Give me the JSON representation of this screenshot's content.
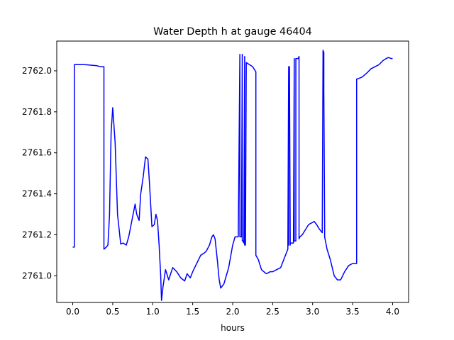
{
  "chart_data": {
    "type": "line",
    "title": "Water Depth h at gauge 46404",
    "xlabel": "hours",
    "ylabel": "",
    "xlim": [
      -0.2,
      4.2
    ],
    "ylim": [
      2760.87,
      2762.145
    ],
    "xticks": [
      {
        "value": 0.0,
        "label": "0.0"
      },
      {
        "value": 0.5,
        "label": "0.5"
      },
      {
        "value": 1.0,
        "label": "1.0"
      },
      {
        "value": 1.5,
        "label": "1.5"
      },
      {
        "value": 2.0,
        "label": "2.0"
      },
      {
        "value": 2.5,
        "label": "2.5"
      },
      {
        "value": 3.0,
        "label": "3.0"
      },
      {
        "value": 3.5,
        "label": "3.5"
      },
      {
        "value": 4.0,
        "label": "4.0"
      }
    ],
    "yticks": [
      {
        "value": 2761.0,
        "label": "2761.0"
      },
      {
        "value": 2761.2,
        "label": "2761.2"
      },
      {
        "value": 2761.4,
        "label": "2761.4"
      },
      {
        "value": 2761.6,
        "label": "2761.6"
      },
      {
        "value": 2761.8,
        "label": "2761.8"
      },
      {
        "value": 2762.0,
        "label": "2762.0"
      }
    ],
    "grid": false,
    "color": "#0000ff",
    "series": [
      {
        "x": [
          0.0,
          0.02,
          0.02,
          0.03,
          0.15,
          0.3,
          0.35,
          0.39,
          0.39,
          0.42,
          0.44,
          0.46,
          0.48,
          0.5,
          0.53,
          0.56,
          0.6,
          0.63,
          0.67,
          0.7,
          0.74,
          0.78,
          0.8,
          0.83,
          0.85,
          0.88,
          0.91,
          0.94,
          0.96,
          0.99,
          1.02,
          1.04,
          1.06,
          1.08,
          1.1,
          1.11,
          1.13,
          1.16,
          1.2,
          1.25,
          1.3,
          1.35,
          1.4,
          1.43,
          1.47,
          1.5,
          1.55,
          1.6,
          1.64,
          1.67,
          1.71,
          1.74,
          1.76,
          1.78,
          1.81,
          1.83,
          1.85,
          1.89,
          1.92,
          1.95,
          2.0,
          2.03,
          2.07,
          2.09,
          2.09,
          2.1,
          2.11,
          2.12,
          2.12,
          2.13,
          2.14,
          2.15,
          2.15,
          2.16,
          2.17,
          2.25,
          2.29,
          2.29,
          2.32,
          2.36,
          2.42,
          2.47,
          2.5,
          2.55,
          2.6,
          2.63,
          2.67,
          2.69,
          2.7,
          2.7,
          2.7,
          2.71,
          2.72,
          2.72,
          2.74,
          2.76,
          2.77,
          2.77,
          2.77,
          2.79,
          2.79,
          2.81,
          2.82,
          2.83,
          2.83,
          2.84,
          2.87,
          2.95,
          3.02,
          3.05,
          3.08,
          3.1,
          3.12,
          3.13,
          3.13,
          3.14,
          3.14,
          3.15,
          3.15,
          3.18,
          3.22,
          3.27,
          3.31,
          3.35,
          3.4,
          3.45,
          3.5,
          3.55,
          3.55,
          3.56,
          3.62,
          3.68,
          3.73,
          3.78,
          3.83,
          3.88,
          3.92,
          3.95,
          3.98,
          4.0
        ],
        "y": [
          2761.14,
          2761.14,
          2762.03,
          2762.03,
          2762.03,
          2762.025,
          2762.02,
          2762.02,
          2761.13,
          2761.14,
          2761.15,
          2761.3,
          2761.7,
          2761.82,
          2761.65,
          2761.3,
          2761.155,
          2761.16,
          2761.15,
          2761.19,
          2761.27,
          2761.35,
          2761.3,
          2761.27,
          2761.4,
          2761.48,
          2761.58,
          2761.57,
          2761.45,
          2761.24,
          2761.25,
          2761.3,
          2761.27,
          2761.15,
          2761.0,
          2760.88,
          2760.95,
          2761.03,
          2760.98,
          2761.04,
          2761.02,
          2760.99,
          2760.975,
          2761.01,
          2760.99,
          2761.02,
          2761.06,
          2761.1,
          2761.11,
          2761.12,
          2761.15,
          2761.19,
          2761.2,
          2761.18,
          2761.07,
          2760.985,
          2760.94,
          2760.96,
          2761.0,
          2761.04,
          2761.15,
          2761.19,
          2761.19,
          2762.08,
          2761.19,
          2761.19,
          2761.19,
          2762.08,
          2761.17,
          2761.17,
          2761.16,
          2762.07,
          2761.15,
          2761.15,
          2762.04,
          2762.02,
          2761.995,
          2761.1,
          2761.08,
          2761.03,
          2761.01,
          2761.02,
          2761.02,
          2761.03,
          2761.04,
          2761.07,
          2761.11,
          2761.13,
          2762.01,
          2761.15,
          2762.02,
          2762.02,
          2761.15,
          2761.16,
          2761.16,
          2761.16,
          2762.05,
          2762.06,
          2761.17,
          2761.17,
          2762.06,
          2762.06,
          2762.06,
          2762.07,
          2761.18,
          2761.19,
          2761.2,
          2761.25,
          2761.265,
          2761.25,
          2761.23,
          2761.22,
          2761.21,
          2762.1,
          2762.1,
          2762.09,
          2761.9,
          2761.25,
          2761.19,
          2761.13,
          2761.08,
          2761.0,
          2760.98,
          2760.98,
          2761.02,
          2761.05,
          2761.06,
          2761.06,
          2761.96,
          2761.96,
          2761.97,
          2761.99,
          2762.01,
          2762.02,
          2762.03,
          2762.05,
          2762.06,
          2762.065,
          2762.06,
          2762.06
        ]
      }
    ]
  }
}
